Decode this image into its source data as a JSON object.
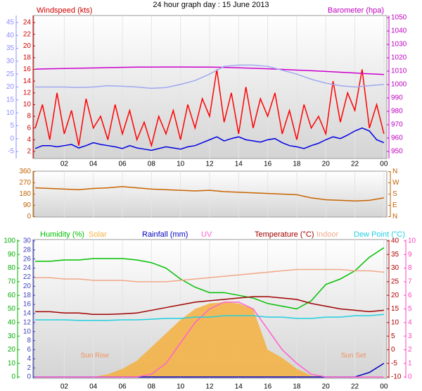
{
  "chart_data": [
    {
      "type": "line",
      "title": "24 hour graph day : 15 June 2013",
      "ylabel": "Windspeed (kts)",
      "y2label": "Barometer (hpa)",
      "grid": true,
      "axis_colors": {
        "y": "#d00000",
        "y2": "#c000c0",
        "y3": "#8c8cff"
      },
      "xlim": [
        -0.1,
        24.2
      ],
      "xticks": [
        {
          "value": 2,
          "label": "02"
        },
        {
          "value": 4,
          "label": "04"
        },
        {
          "value": 6,
          "label": "06"
        },
        {
          "value": 8,
          "label": "08"
        },
        10,
        12,
        14,
        16,
        18,
        20,
        22,
        {
          "value": 24,
          "label": "00"
        }
      ],
      "ylim": [
        0.8,
        25.2
      ],
      "yticks": [
        2,
        4,
        6,
        8,
        10,
        12,
        14,
        16,
        18,
        20,
        22,
        24
      ],
      "y2lim": [
        944.7,
        1051.6
      ],
      "y2ticks": [
        950,
        960,
        970,
        980,
        990,
        1000,
        1010,
        1020,
        1030,
        1040,
        1050
      ],
      "y3lim": [
        -7.7,
        47.7
      ],
      "y3ticks": [
        -5,
        0,
        5,
        10,
        15,
        20,
        25,
        30,
        35,
        40,
        45
      ],
      "x": [
        0,
        0.5,
        1,
        1.5,
        2,
        2.5,
        3,
        3.5,
        4,
        4.5,
        5,
        5.5,
        6,
        6.5,
        7,
        7.5,
        8,
        8.5,
        9,
        9.5,
        10,
        10.5,
        11,
        11.5,
        12,
        12.5,
        13,
        13.5,
        14,
        14.5,
        15,
        15.5,
        16,
        16.5,
        17,
        17.5,
        18,
        18.5,
        19,
        19.5,
        20,
        20.5,
        21,
        21.5,
        22,
        22.5,
        23,
        23.5,
        24
      ],
      "series": [
        {
          "color": "#ff0000",
          "values": [
            6,
            10,
            4,
            12,
            5,
            9,
            3,
            11,
            6,
            8,
            4,
            10,
            5,
            9,
            4,
            7,
            3,
            8,
            5,
            9,
            4,
            10,
            6,
            11,
            8,
            16,
            7,
            12,
            5,
            13,
            6,
            11,
            8,
            12,
            5,
            9,
            4,
            10,
            6,
            8,
            5,
            14,
            7,
            12,
            9,
            16,
            6,
            10,
            5
          ]
        },
        {
          "color": "#0000e0",
          "values": [
            2.5,
            3,
            3,
            2.8,
            3,
            3.2,
            2.6,
            3,
            3.5,
            3.2,
            3,
            2.8,
            2.5,
            3,
            2.6,
            2.4,
            2.2,
            2.5,
            2.8,
            2.6,
            2.4,
            2.8,
            3,
            3.5,
            4,
            4.5,
            3.8,
            4.2,
            4.5,
            4,
            3.8,
            3.6,
            4,
            4.2,
            3.5,
            3,
            2.8,
            2.5,
            3,
            3.4,
            4,
            4.5,
            4.2,
            4.8,
            5.5,
            6,
            5.5,
            4,
            3.5
          ]
        },
        {
          "color": "#cc00cc",
          "axis": "y2",
          "x": [
            0,
            1,
            2,
            3,
            4,
            5,
            6,
            7,
            8,
            9,
            10,
            11,
            12,
            13,
            14,
            15,
            16,
            17,
            18,
            19,
            20,
            21,
            22,
            23,
            24
          ],
          "values": [
            1011.5,
            1011.8,
            1012,
            1012.2,
            1012.4,
            1012.6,
            1012.8,
            1013,
            1013,
            1013.1,
            1013.1,
            1013,
            1013,
            1012.8,
            1012.5,
            1012.2,
            1011.8,
            1011.3,
            1010.8,
            1010.3,
            1009.8,
            1009.2,
            1008.6,
            1008,
            1007.5
          ]
        },
        {
          "color": "#a0a8f0",
          "axis": "y3",
          "x": [
            0,
            1,
            2,
            3,
            4,
            5,
            6,
            7,
            8,
            9,
            10,
            11,
            12,
            13,
            14,
            15,
            16,
            17,
            18,
            19,
            20,
            21,
            22,
            23,
            24
          ],
          "values": [
            20,
            20,
            20,
            19.8,
            20,
            20.5,
            20.3,
            20,
            19.5,
            19.8,
            21,
            22.5,
            25,
            28,
            28.5,
            28.5,
            28,
            26.5,
            25,
            23,
            21.5,
            20.5,
            20,
            20.5,
            21
          ]
        }
      ]
    },
    {
      "type": "line",
      "grid": true,
      "axis_colors": {
        "y": "#c06000",
        "y2": "#c06000"
      },
      "xlim": [
        -0.1,
        24.2
      ],
      "xticks": [
        2,
        4,
        6,
        8,
        10,
        12,
        14,
        16,
        18,
        20,
        22,
        24
      ],
      "ylim": [
        -3,
        363
      ],
      "yticks": [
        0,
        90,
        180,
        270,
        360
      ],
      "y2lim": [
        -3,
        363
      ],
      "y2ticks": [
        {
          "value": 0,
          "label": "N"
        },
        {
          "value": 90,
          "label": "E"
        },
        {
          "value": 180,
          "label": "S"
        },
        {
          "value": 270,
          "label": "W"
        },
        {
          "value": 360,
          "label": "N"
        }
      ],
      "x": [
        0,
        1,
        2,
        3,
        4,
        5,
        6,
        7,
        8,
        9,
        10,
        11,
        12,
        13,
        14,
        15,
        16,
        17,
        18,
        19,
        20,
        21,
        22,
        23,
        24
      ],
      "series": [
        {
          "color": "#c86400",
          "values": [
            230,
            225,
            220,
            215,
            225,
            230,
            240,
            230,
            220,
            215,
            210,
            205,
            210,
            200,
            195,
            190,
            185,
            180,
            175,
            150,
            135,
            130,
            125,
            130,
            150
          ]
        }
      ]
    },
    {
      "type": "line",
      "grid": true,
      "axis_colors": {
        "y": "#00b000",
        "y2": "#b00000",
        "y3": "#4040c0",
        "y4": "#ff40c0"
      },
      "xlim": [
        -0.1,
        24.2
      ],
      "xticks": [
        {
          "value": 2,
          "label": "02"
        },
        {
          "value": 4,
          "label": "04"
        },
        {
          "value": 6,
          "label": "06"
        },
        {
          "value": 8,
          "label": "08"
        },
        10,
        12,
        14,
        16,
        18,
        20,
        22,
        {
          "value": 24,
          "label": "00"
        }
      ],
      "ylim": [
        -1,
        101
      ],
      "yticks": [
        0,
        10,
        20,
        30,
        40,
        50,
        60,
        70,
        80,
        90,
        100
      ],
      "y2lim": [
        -10.5,
        40.5
      ],
      "y2ticks": [
        -10,
        -5,
        0,
        5,
        10,
        15,
        20,
        25,
        30,
        35,
        40
      ],
      "y3lim": [
        -0.3,
        30.3
      ],
      "y3ticks": [
        0,
        2,
        4,
        6,
        8,
        10,
        12,
        14,
        16,
        18,
        20,
        22,
        24,
        26,
        28,
        30
      ],
      "y4lim": [
        -0.1,
        10.1
      ],
      "y4ticks": [
        0,
        1,
        2,
        3,
        4,
        5,
        6,
        7,
        8,
        9,
        10
      ],
      "x": [
        0,
        1,
        2,
        3,
        4,
        5,
        6,
        7,
        8,
        9,
        10,
        11,
        12,
        13,
        14,
        15,
        16,
        17,
        18,
        19,
        20,
        21,
        22,
        23,
        24
      ],
      "annotations": [
        {
          "text": "Sun Rise",
          "x": 4.1
        },
        {
          "text": "Sun Set",
          "x": 21.9
        }
      ],
      "series": [
        {
          "name": "Humidity (%)",
          "color": "#00c000",
          "values": [
            85,
            85,
            86,
            86,
            87,
            87,
            87,
            86,
            84,
            80,
            72,
            66,
            62,
            62,
            60,
            58,
            54,
            52,
            50,
            56,
            68,
            72,
            78,
            88,
            95
          ]
        },
        {
          "name": "Solar",
          "color": "#f5b040",
          "fill": true,
          "values": [
            0,
            0,
            0,
            0,
            0,
            2,
            6,
            12,
            22,
            32,
            42,
            50,
            54,
            55,
            54,
            50,
            20,
            14,
            6,
            1,
            0,
            0,
            0,
            0,
            0
          ]
        },
        {
          "name": "Rainfall (mm)",
          "color": "#0000c0",
          "axis": "y3",
          "values": [
            0,
            0,
            0,
            0,
            0,
            0,
            0,
            0,
            0,
            0,
            0,
            0,
            0,
            0,
            0,
            0,
            0,
            0,
            0,
            0,
            0,
            0,
            0,
            1,
            3
          ]
        },
        {
          "name": "UV",
          "color": "#ff60d0",
          "axis": "y4",
          "values": [
            0,
            0,
            0,
            0,
            0,
            0,
            0,
            0,
            0.2,
            1,
            2.5,
            4,
            5,
            5.5,
            5.5,
            5,
            3.5,
            2,
            1,
            0.2,
            0,
            0,
            0,
            0,
            0
          ]
        },
        {
          "name": "Temperature (°C)",
          "color": "#a00000",
          "axis": "y2",
          "values": [
            14,
            14,
            13.5,
            13.5,
            13,
            13,
            13.2,
            13.5,
            14.5,
            15.5,
            16.5,
            17.5,
            18,
            18.5,
            19,
            19.5,
            19.5,
            19,
            18.5,
            17,
            16,
            15,
            14.5,
            14,
            14.5
          ]
        },
        {
          "name": "Indoor",
          "color": "#f0a888",
          "axis": "y2",
          "values": [
            26.5,
            26.5,
            26,
            26,
            25.5,
            25.5,
            25.5,
            25,
            25,
            25,
            25.5,
            26,
            26.5,
            27,
            27.5,
            28,
            28.5,
            29,
            29.5,
            29.5,
            29.5,
            29.5,
            29,
            29,
            28.5
          ]
        },
        {
          "name": "Dew Point (°C)",
          "color": "#20d0e0",
          "axis": "y2",
          "values": [
            11,
            11,
            11,
            10.8,
            10.8,
            10.8,
            11,
            11,
            11.2,
            11.5,
            11.5,
            12,
            12,
            12.5,
            12.5,
            12.5,
            12,
            12,
            11.5,
            11.5,
            12,
            12,
            12.5,
            12.5,
            13
          ]
        }
      ]
    }
  ]
}
